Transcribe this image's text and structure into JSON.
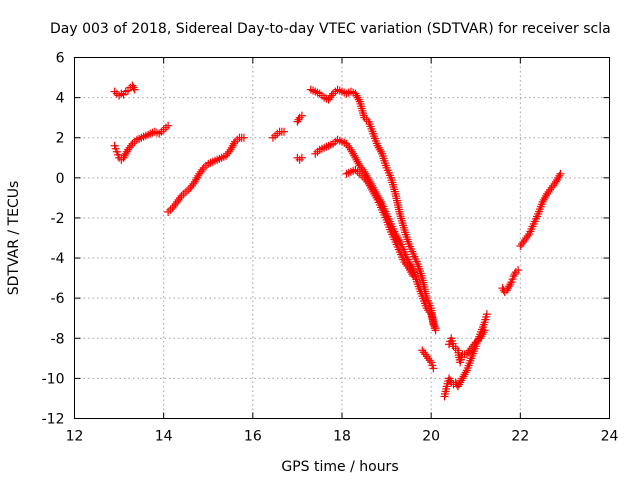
{
  "chart_data": {
    "type": "scatter",
    "title": "Day 003 of 2018, Sidereal Day-to-day VTEC variation (SDTVAR) for receiver scla",
    "xlabel": "GPS time / hours",
    "ylabel": "SDTVAR / TECUs",
    "xlim": [
      12,
      24
    ],
    "ylim": [
      -12,
      6
    ],
    "x_ticks": [
      12,
      14,
      16,
      18,
      20,
      22,
      24
    ],
    "y_ticks": [
      -12,
      -10,
      -8,
      -6,
      -4,
      -2,
      0,
      2,
      4,
      6
    ],
    "grid": true,
    "legend": "none",
    "marker_color": "#ff0000",
    "marker": "plus",
    "segments": [
      {
        "points": [
          [
            12.9,
            4.3
          ],
          [
            13.0,
            4.1
          ],
          [
            13.05,
            4.2
          ],
          [
            13.1,
            4.15
          ],
          [
            13.15,
            4.3
          ],
          [
            13.2,
            4.35
          ],
          [
            13.25,
            4.5
          ],
          [
            13.3,
            4.6
          ],
          [
            13.35,
            4.4
          ]
        ]
      },
      {
        "points": [
          [
            12.9,
            1.6
          ],
          [
            12.95,
            1.3
          ],
          [
            13.0,
            1.0
          ],
          [
            13.05,
            0.9
          ],
          [
            13.1,
            1.0
          ],
          [
            13.15,
            1.2
          ],
          [
            13.2,
            1.4
          ],
          [
            13.3,
            1.7
          ],
          [
            13.4,
            1.9
          ],
          [
            13.5,
            2.0
          ],
          [
            13.6,
            2.1
          ],
          [
            13.7,
            2.2
          ],
          [
            13.8,
            2.3
          ],
          [
            13.9,
            2.2
          ],
          [
            14.0,
            2.4
          ],
          [
            14.1,
            2.6
          ]
        ]
      },
      {
        "points": [
          [
            14.1,
            -1.7
          ],
          [
            14.2,
            -1.5
          ],
          [
            14.3,
            -1.2
          ],
          [
            14.4,
            -0.9
          ],
          [
            14.5,
            -0.7
          ],
          [
            14.6,
            -0.5
          ],
          [
            14.7,
            -0.2
          ],
          [
            14.8,
            0.2
          ],
          [
            14.9,
            0.5
          ],
          [
            15.0,
            0.7
          ],
          [
            15.1,
            0.8
          ],
          [
            15.2,
            0.9
          ],
          [
            15.3,
            1.0
          ],
          [
            15.4,
            1.1
          ],
          [
            15.5,
            1.4
          ],
          [
            15.6,
            1.8
          ],
          [
            15.7,
            2.0
          ],
          [
            15.8,
            2.0
          ]
        ]
      },
      {
        "points": [
          [
            16.45,
            2.0
          ],
          [
            16.5,
            2.1
          ],
          [
            16.6,
            2.3
          ],
          [
            16.7,
            2.3
          ]
        ]
      },
      {
        "points": [
          [
            17.0,
            2.8
          ],
          [
            17.05,
            3.0
          ],
          [
            17.1,
            3.1
          ]
        ]
      },
      {
        "points": [
          [
            17.0,
            1.0
          ],
          [
            17.05,
            0.9
          ],
          [
            17.1,
            1.0
          ]
        ]
      },
      {
        "points": [
          [
            17.3,
            4.4
          ],
          [
            17.4,
            4.3
          ],
          [
            17.5,
            4.2
          ],
          [
            17.6,
            4.0
          ],
          [
            17.7,
            3.9
          ],
          [
            17.8,
            4.2
          ],
          [
            17.9,
            4.4
          ],
          [
            18.0,
            4.3
          ],
          [
            18.1,
            4.2
          ],
          [
            18.2,
            4.3
          ],
          [
            18.3,
            4.2
          ],
          [
            18.4,
            3.8
          ],
          [
            18.5,
            3.0
          ],
          [
            18.6,
            2.8
          ],
          [
            18.7,
            2.2
          ],
          [
            18.8,
            1.6
          ],
          [
            18.9,
            1.2
          ],
          [
            19.0,
            0.5
          ],
          [
            19.1,
            0.0
          ],
          [
            19.2,
            -0.8
          ],
          [
            19.3,
            -1.8
          ],
          [
            19.4,
            -2.6
          ],
          [
            19.5,
            -3.3
          ],
          [
            19.6,
            -3.8
          ],
          [
            19.7,
            -4.3
          ],
          [
            19.8,
            -5.0
          ],
          [
            19.9,
            -6.0
          ],
          [
            20.0,
            -6.5
          ],
          [
            20.05,
            -7.3
          ],
          [
            20.1,
            -7.5
          ]
        ]
      },
      {
        "points": [
          [
            17.4,
            1.2
          ],
          [
            17.5,
            1.4
          ],
          [
            17.6,
            1.5
          ],
          [
            17.7,
            1.6
          ],
          [
            17.8,
            1.7
          ],
          [
            17.9,
            1.9
          ],
          [
            18.0,
            1.8
          ],
          [
            18.1,
            1.7
          ],
          [
            18.2,
            1.4
          ],
          [
            18.3,
            1.0
          ],
          [
            18.4,
            0.6
          ],
          [
            18.5,
            0.3
          ],
          [
            18.6,
            -0.1
          ],
          [
            18.7,
            -0.5
          ],
          [
            18.8,
            -0.9
          ],
          [
            18.9,
            -1.3
          ],
          [
            19.0,
            -1.8
          ],
          [
            19.1,
            -2.3
          ],
          [
            19.2,
            -2.8
          ],
          [
            19.3,
            -3.2
          ],
          [
            19.4,
            -3.7
          ],
          [
            19.5,
            -4.2
          ],
          [
            19.6,
            -4.6
          ],
          [
            19.7,
            -5.3
          ],
          [
            19.8,
            -5.9
          ],
          [
            19.9,
            -6.5
          ],
          [
            20.0,
            -6.8
          ],
          [
            20.1,
            -7.6
          ]
        ]
      },
      {
        "points": [
          [
            18.1,
            0.2
          ],
          [
            18.2,
            0.3
          ],
          [
            18.3,
            0.4
          ],
          [
            18.4,
            0.2
          ],
          [
            18.5,
            0.0
          ],
          [
            18.6,
            -0.3
          ],
          [
            18.7,
            -0.7
          ],
          [
            18.8,
            -1.1
          ],
          [
            18.9,
            -1.6
          ],
          [
            19.0,
            -2.1
          ],
          [
            19.1,
            -2.7
          ],
          [
            19.2,
            -3.2
          ],
          [
            19.3,
            -3.7
          ],
          [
            19.4,
            -4.2
          ],
          [
            19.5,
            -4.5
          ],
          [
            19.6,
            -4.9
          ]
        ]
      },
      {
        "points": [
          [
            19.8,
            -8.6
          ],
          [
            19.9,
            -8.9
          ],
          [
            20.0,
            -9.2
          ],
          [
            20.05,
            -9.5
          ]
        ]
      },
      {
        "points": [
          [
            20.3,
            -10.9
          ],
          [
            20.35,
            -10.4
          ],
          [
            20.4,
            -10.0
          ],
          [
            20.45,
            -10.2
          ],
          [
            20.5,
            -10.3
          ],
          [
            20.55,
            -10.2
          ],
          [
            20.6,
            -10.4
          ],
          [
            20.7,
            -10.0
          ],
          [
            20.8,
            -9.6
          ],
          [
            20.9,
            -9.0
          ],
          [
            21.0,
            -8.4
          ],
          [
            21.1,
            -7.8
          ],
          [
            21.2,
            -7.2
          ],
          [
            21.25,
            -6.8
          ]
        ]
      },
      {
        "points": [
          [
            20.4,
            -8.3
          ],
          [
            20.45,
            -8.0
          ],
          [
            20.5,
            -8.4
          ],
          [
            20.6,
            -8.6
          ],
          [
            20.65,
            -9.2
          ],
          [
            20.7,
            -8.8
          ],
          [
            20.8,
            -8.8
          ],
          [
            20.9,
            -8.5
          ],
          [
            21.0,
            -8.2
          ],
          [
            21.1,
            -8.0
          ],
          [
            21.2,
            -7.6
          ]
        ]
      },
      {
        "points": [
          [
            21.6,
            -5.5
          ],
          [
            21.65,
            -5.7
          ],
          [
            21.7,
            -5.6
          ],
          [
            21.8,
            -5.2
          ],
          [
            21.85,
            -4.9
          ],
          [
            21.9,
            -4.7
          ],
          [
            21.95,
            -4.6
          ]
        ]
      },
      {
        "points": [
          [
            22.0,
            -3.4
          ],
          [
            22.1,
            -3.1
          ],
          [
            22.2,
            -2.8
          ],
          [
            22.3,
            -2.3
          ],
          [
            22.4,
            -1.8
          ],
          [
            22.5,
            -1.2
          ],
          [
            22.6,
            -0.8
          ],
          [
            22.7,
            -0.5
          ],
          [
            22.8,
            -0.2
          ],
          [
            22.85,
            0.0
          ],
          [
            22.9,
            0.2
          ]
        ]
      }
    ]
  }
}
